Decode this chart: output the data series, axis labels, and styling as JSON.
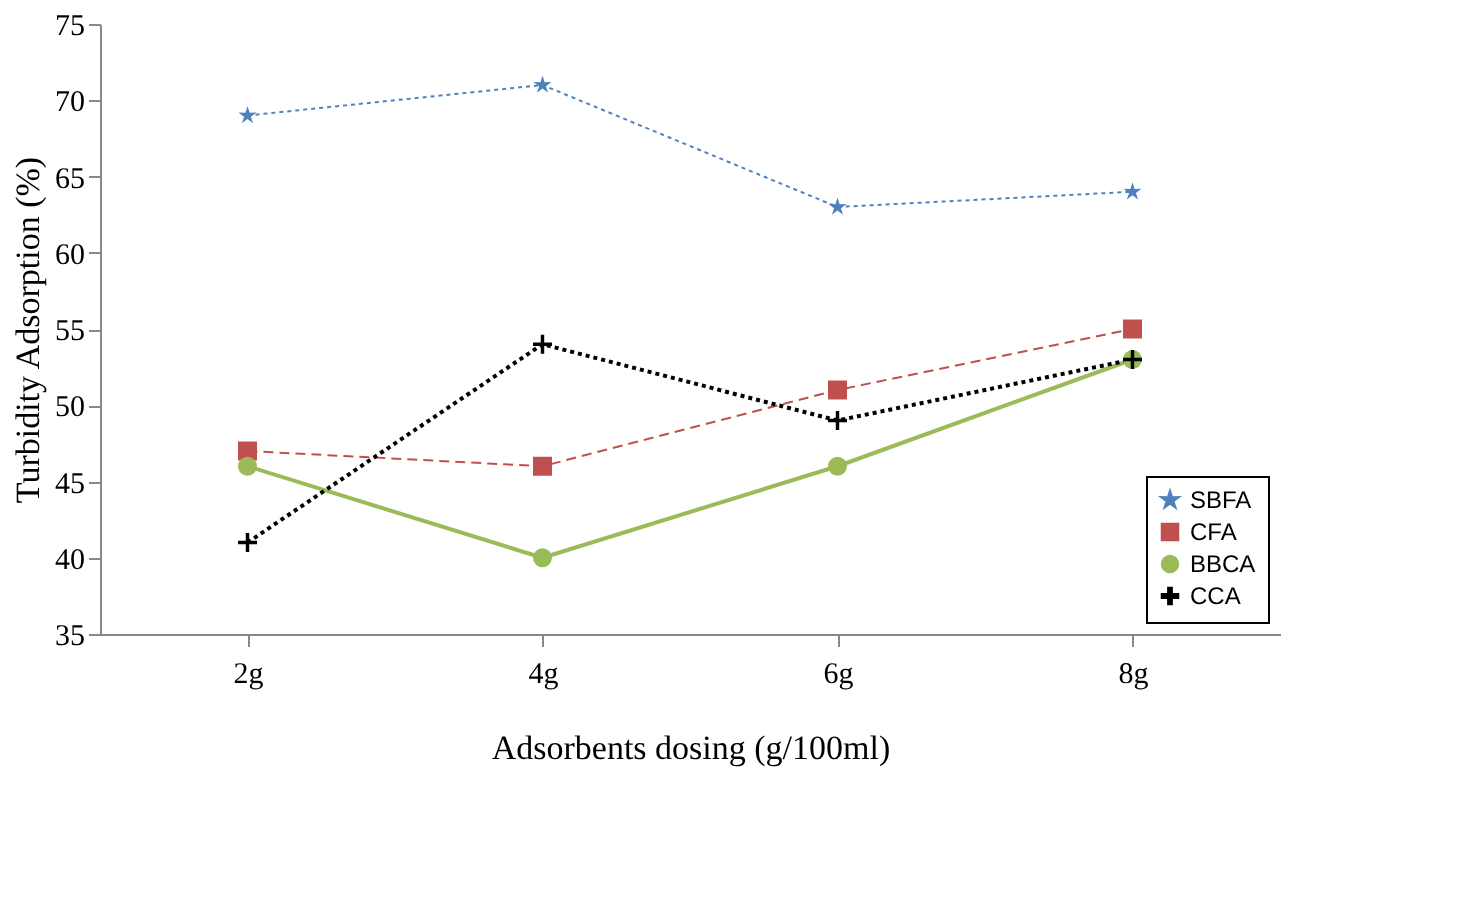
{
  "chart_data": {
    "type": "line",
    "xlabel": "Adsorbents dosing (g/100ml)",
    "ylabel": "Turbidity  Adsorption (%)",
    "categories": [
      "2g",
      "4g",
      "6g",
      "8g"
    ],
    "series": [
      {
        "name": "SBFA",
        "color": "#4f81bd",
        "values": [
          69,
          71,
          63,
          64
        ],
        "marker": "star",
        "line_style": "dotted"
      },
      {
        "name": "CFA",
        "color": "#c0504d",
        "values": [
          47,
          46,
          51,
          55
        ],
        "marker": "square",
        "line_style": "dashed"
      },
      {
        "name": "BBCA",
        "color": "#9bbb59",
        "values": [
          46,
          40,
          46,
          53
        ],
        "marker": "circle",
        "line_style": "solid"
      },
      {
        "name": "CCA",
        "color": "#000000",
        "values": [
          41,
          54,
          49,
          53
        ],
        "marker": "cross",
        "line_style": "dotted"
      }
    ],
    "ylim": [
      35,
      75
    ],
    "yticks": [
      35,
      40,
      45,
      50,
      55,
      60,
      65,
      70,
      75
    ],
    "grid": false,
    "legend": "bottom right"
  }
}
